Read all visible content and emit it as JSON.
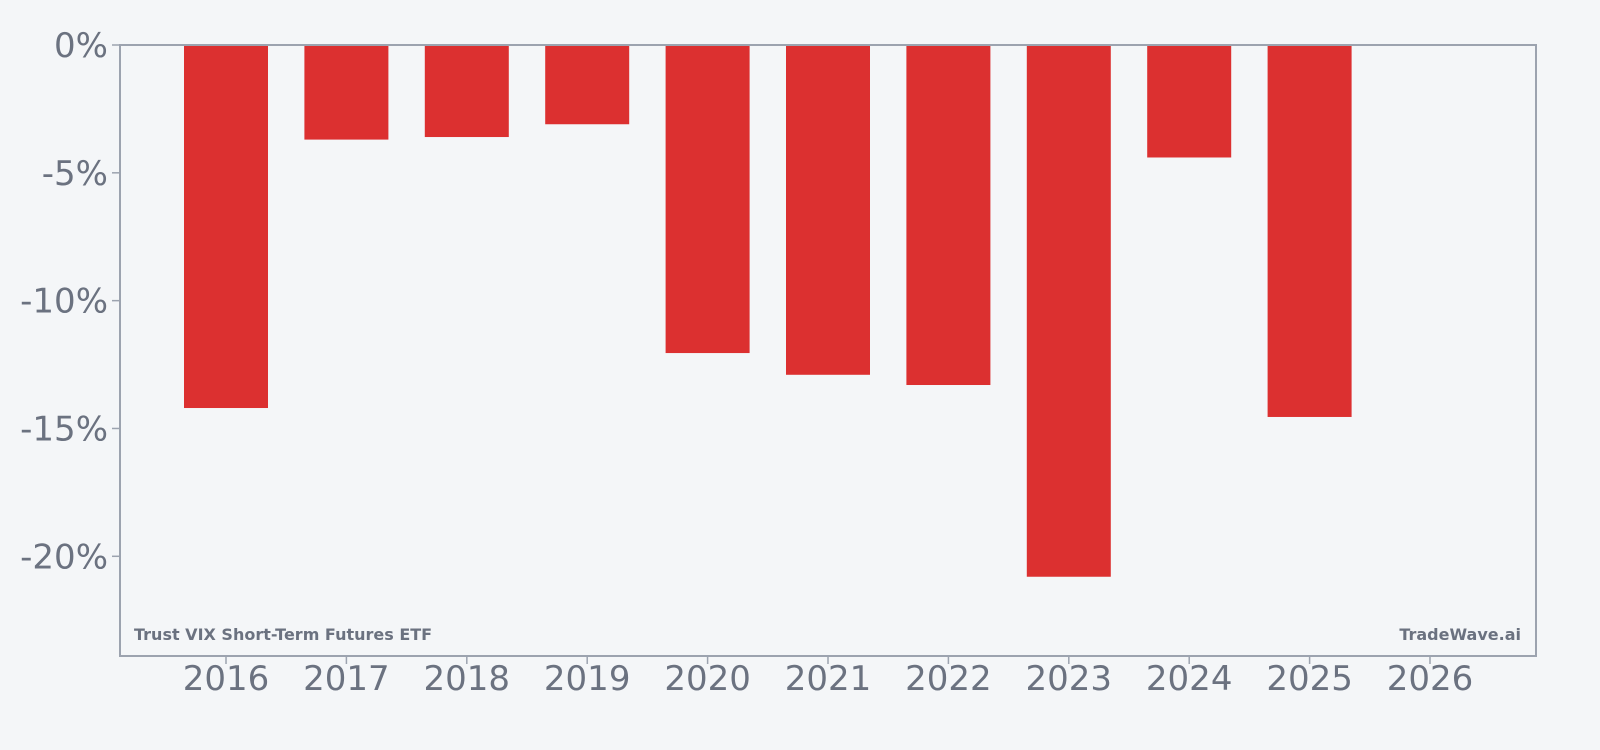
{
  "chart_data": {
    "type": "bar",
    "categories": [
      "2016",
      "2017",
      "2018",
      "2019",
      "2020",
      "2021",
      "2022",
      "2023",
      "2024",
      "2025",
      "2026"
    ],
    "values": [
      -14.2,
      -3.7,
      -3.6,
      -3.1,
      -12.05,
      -12.9,
      -13.3,
      -20.8,
      -4.4,
      -14.55,
      null
    ],
    "y_ticks": [
      "0%",
      "-5%",
      "-10%",
      "-15%",
      "-20%"
    ],
    "y_tick_values": [
      0,
      -5,
      -10,
      -15,
      -20
    ],
    "ylim": [
      -23.9,
      0
    ],
    "grid": false,
    "bar_color": "#dc3030",
    "axis_color": "#9ca3af",
    "text_color": "#6b7280",
    "background_color": "#f4f6f8"
  },
  "watermark_left": "Trust VIX Short-Term Futures ETF",
  "watermark_right": "TradeWave.ai"
}
